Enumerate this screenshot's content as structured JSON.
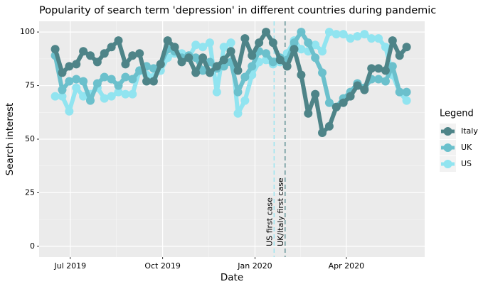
{
  "chart_data": {
    "type": "line",
    "title": "Popularity of search term 'depression' in different countries during pandemic",
    "x_label": "Date",
    "y_label": "Search interest",
    "legend_title": "Legend",
    "x": [
      "2019-06-16",
      "2019-06-23",
      "2019-06-30",
      "2019-07-07",
      "2019-07-14",
      "2019-07-21",
      "2019-07-28",
      "2019-08-04",
      "2019-08-11",
      "2019-08-18",
      "2019-08-25",
      "2019-09-01",
      "2019-09-08",
      "2019-09-15",
      "2019-09-22",
      "2019-09-29",
      "2019-10-06",
      "2019-10-13",
      "2019-10-20",
      "2019-10-27",
      "2019-11-03",
      "2019-11-10",
      "2019-11-17",
      "2019-11-24",
      "2019-12-01",
      "2019-12-08",
      "2019-12-15",
      "2019-12-22",
      "2019-12-29",
      "2020-01-05",
      "2020-01-12",
      "2020-01-19",
      "2020-01-26",
      "2020-02-02",
      "2020-02-09",
      "2020-02-16",
      "2020-02-23",
      "2020-03-01",
      "2020-03-08",
      "2020-03-15",
      "2020-03-22",
      "2020-03-29",
      "2020-04-05",
      "2020-04-12",
      "2020-04-19",
      "2020-04-26",
      "2020-05-03",
      "2020-05-10",
      "2020-05-17",
      "2020-05-24",
      "2020-05-31"
    ],
    "series": [
      {
        "name": "Italy",
        "color": "#4e8488",
        "values": [
          92,
          81,
          84,
          85,
          91,
          89,
          86,
          90,
          93,
          96,
          85,
          89,
          90,
          77,
          77,
          85,
          96,
          93,
          86,
          88,
          81,
          88,
          81,
          84,
          87,
          91,
          82,
          97,
          89,
          95,
          100,
          95,
          87,
          84,
          92,
          80,
          62,
          71,
          53,
          56,
          65,
          67,
          70,
          75,
          73,
          83,
          83,
          82,
          96,
          89,
          93
        ]
      },
      {
        "name": "UK",
        "color": "#6bc0cc",
        "values": [
          89,
          73,
          77,
          78,
          77,
          68,
          76,
          79,
          78,
          75,
          79,
          78,
          82,
          84,
          83,
          85,
          92,
          91,
          88,
          89,
          88,
          82,
          86,
          83,
          84,
          86,
          72,
          79,
          84,
          91,
          90,
          86,
          88,
          87,
          95,
          100,
          95,
          88,
          81,
          67,
          65,
          69,
          72,
          76,
          74,
          78,
          78,
          77,
          84,
          72,
          72
        ]
      },
      {
        "name": "US",
        "color": "#91e4f0",
        "values": [
          70,
          70,
          63,
          74,
          70,
          71,
          74,
          69,
          70,
          72,
          71,
          71,
          82,
          80,
          79,
          82,
          88,
          90,
          90,
          88,
          94,
          93,
          95,
          72,
          93,
          95,
          62,
          68,
          80,
          86,
          87,
          85,
          86,
          90,
          96,
          92,
          91,
          94,
          91,
          100,
          99,
          99,
          97,
          98,
          99,
          97,
          97,
          93,
          80,
          72,
          68
        ]
      }
    ],
    "vlines": [
      {
        "date": "2020-01-20",
        "label": "US first case",
        "color": "#91e4f0"
      },
      {
        "date": "2020-01-31",
        "label": "UK/Italy first case",
        "color": "#4e8488"
      }
    ],
    "xlim": [
      "2019-05-31",
      "2020-06-18"
    ],
    "xticks": [
      {
        "value": "2019-07-01",
        "label": "Jul 2019"
      },
      {
        "value": "2019-10-01",
        "label": "Oct 2019"
      },
      {
        "value": "2020-01-01",
        "label": "Jan 2020"
      },
      {
        "value": "2020-04-01",
        "label": "Apr 2020"
      }
    ],
    "ylim": [
      -5,
      105
    ],
    "yticks": [
      0,
      25,
      50,
      75,
      100
    ],
    "grid": true,
    "legend": "right"
  }
}
